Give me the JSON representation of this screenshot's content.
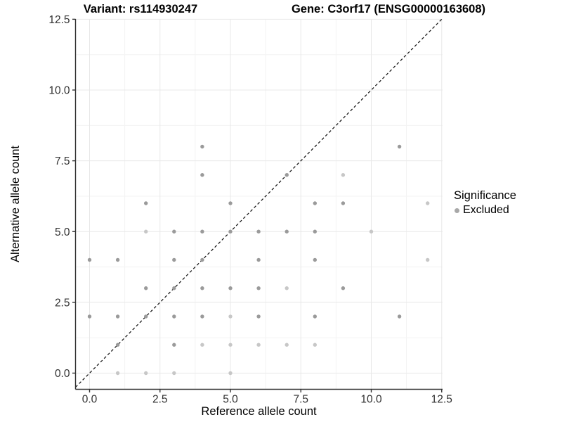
{
  "chart_data": {
    "type": "scatter",
    "title_left": "Variant: rs114930247",
    "title_right": "Gene: C3orf17 (ENSG00000163608)",
    "xlabel": "Reference allele count",
    "ylabel": "Alternative allele count",
    "xlim": [
      -0.5,
      13.05
    ],
    "ylim": [
      -0.57,
      12.55
    ],
    "x_ticks": [
      0,
      2.5,
      5,
      7.5,
      10,
      12.5
    ],
    "x_tick_labels": [
      "0.0",
      "2.5",
      "5.0",
      "7.5",
      "10.0",
      "12.5"
    ],
    "y_ticks": [
      0,
      2.5,
      5,
      7.5,
      10,
      12.5
    ],
    "y_tick_labels": [
      "0.0",
      "2.5",
      "5.0",
      "7.5",
      "10.0",
      "12.5"
    ],
    "minor_ticks": [
      1.25,
      3.75,
      6.25,
      8.75,
      11.25
    ],
    "grid": "major+minor",
    "identity_line": {
      "slope": 1,
      "intercept": 0,
      "style": "dashed",
      "color": "#141414"
    },
    "legend": {
      "title": "Significance",
      "position": "right",
      "items": [
        {
          "label": "Excluded",
          "color": "#a8a8a8"
        }
      ]
    },
    "style": {
      "major_grid_color": "#e8e8e8",
      "minor_grid_color": "#f3f3f3",
      "axis_color": "#333333",
      "tick_label_color": "#303030",
      "point_color_dark": "#9a9a9a",
      "point_color_light": "#c7c7c7",
      "background": "#ffffff"
    },
    "series": [
      {
        "name": "Excluded",
        "points": [
          [
            1,
            0,
            "l"
          ],
          [
            2,
            0,
            "l"
          ],
          [
            3,
            0,
            "l"
          ],
          [
            5,
            0,
            "l"
          ],
          [
            1,
            1,
            "d"
          ],
          [
            3,
            1,
            "d"
          ],
          [
            4,
            1,
            "l"
          ],
          [
            5,
            1,
            "l"
          ],
          [
            6,
            1,
            "l"
          ],
          [
            7,
            1,
            "l"
          ],
          [
            8,
            1,
            "l"
          ],
          [
            0,
            2,
            "d"
          ],
          [
            1,
            2,
            "d"
          ],
          [
            2,
            2,
            "d"
          ],
          [
            3,
            2,
            "d"
          ],
          [
            4,
            2,
            "d"
          ],
          [
            5,
            2,
            "l"
          ],
          [
            6,
            2,
            "d"
          ],
          [
            8,
            2,
            "d"
          ],
          [
            11,
            2,
            "d"
          ],
          [
            2,
            3,
            "d"
          ],
          [
            3,
            3,
            "d"
          ],
          [
            4,
            3,
            "d"
          ],
          [
            5,
            3,
            "d"
          ],
          [
            6,
            3,
            "d"
          ],
          [
            7,
            3,
            "l"
          ],
          [
            9,
            3,
            "d"
          ],
          [
            0,
            4,
            "d"
          ],
          [
            1,
            4,
            "d"
          ],
          [
            3,
            4,
            "d"
          ],
          [
            4,
            4,
            "d"
          ],
          [
            6,
            4,
            "d"
          ],
          [
            8,
            4,
            "d"
          ],
          [
            12,
            4,
            "l"
          ],
          [
            2,
            5,
            "l"
          ],
          [
            3,
            5,
            "d"
          ],
          [
            4,
            5,
            "d"
          ],
          [
            5,
            5,
            "d"
          ],
          [
            6,
            5,
            "d"
          ],
          [
            7,
            5,
            "d"
          ],
          [
            8,
            5,
            "d"
          ],
          [
            10,
            5,
            "l"
          ],
          [
            2,
            6,
            "d"
          ],
          [
            5,
            6,
            "d"
          ],
          [
            8,
            6,
            "d"
          ],
          [
            9,
            6,
            "d"
          ],
          [
            12,
            6,
            "l"
          ],
          [
            4,
            7,
            "d"
          ],
          [
            7,
            7,
            "d"
          ],
          [
            9,
            7,
            "l"
          ],
          [
            4,
            8,
            "d"
          ],
          [
            11,
            8,
            "d"
          ]
        ]
      }
    ]
  }
}
